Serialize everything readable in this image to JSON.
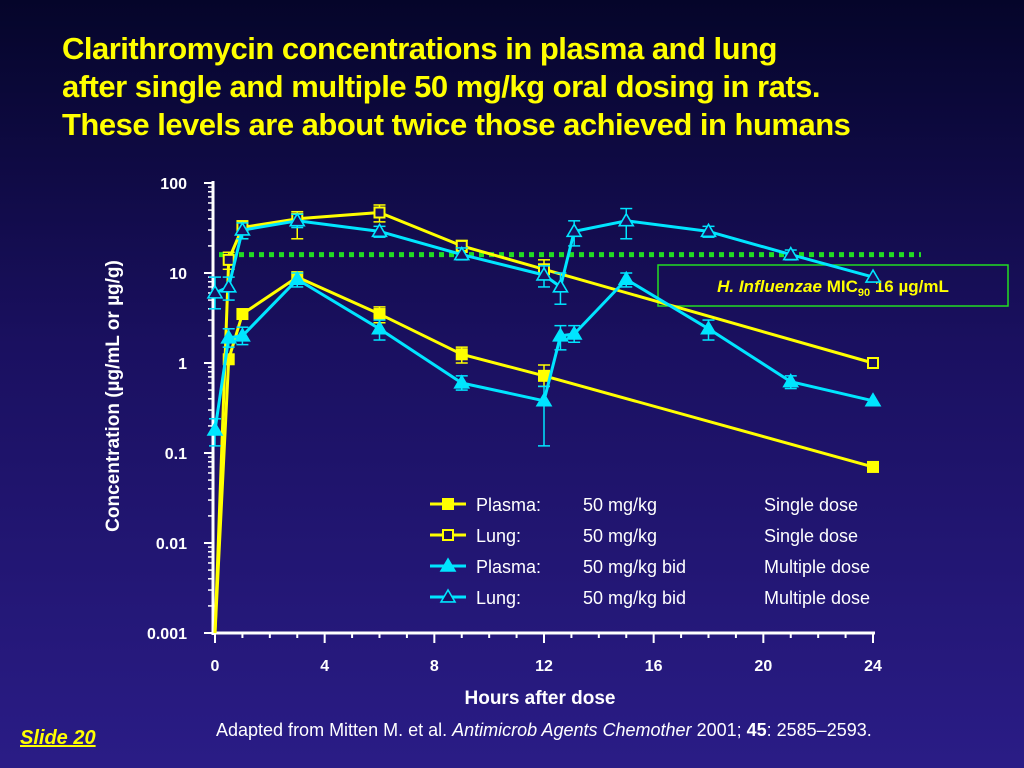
{
  "title": {
    "line1": "Clarithromycin concentrations in plasma and lung",
    "line2": "after single and multiple 50 mg/kg oral dosing in rats.",
    "line3": "These levels are about twice those achieved in humans"
  },
  "footer": {
    "prefix": "Adapted from Mitten M. et al. ",
    "journal": "Antimicrob Agents Chemother",
    "year": " 2001; ",
    "volume": "45",
    "pages": ": 2585–2593."
  },
  "slide_label": "Slide  20",
  "colors": {
    "background": "#1a1060",
    "title": "#ffff00",
    "single_dose": "#ffff00",
    "multiple_dose": "#00e5ff",
    "mic_line": "#22dd22",
    "text": "#ffffff"
  },
  "chart_data": {
    "type": "line",
    "xlabel": "Hours after dose",
    "ylabel": "Concentration (µg/mL or µg/g)",
    "y_scale": "log",
    "xlim": [
      0,
      24
    ],
    "ylim": [
      0.001,
      100
    ],
    "x_ticks": [
      "0",
      "4",
      "8",
      "12",
      "16",
      "20",
      "24"
    ],
    "y_ticks": [
      "0.001",
      "0.01",
      "0.1",
      "1",
      "10",
      "100"
    ],
    "legend_position": "bottom-right",
    "series": [
      {
        "name": "Plasma:",
        "dose": "50 mg/kg",
        "regimen": "Single dose",
        "color": "#ffff00",
        "marker": "square-filled",
        "points": [
          {
            "x": 0,
            "y": 0.001
          },
          {
            "x": 0.5,
            "y": 1.1
          },
          {
            "x": 1,
            "y": 3.5
          },
          {
            "x": 3,
            "y": 9
          },
          {
            "x": 6,
            "y": 3.5,
            "err": [
              2.8,
              4.2
            ]
          },
          {
            "x": 9,
            "y": 1.25,
            "err": [
              1.0,
              1.5
            ]
          },
          {
            "x": 12,
            "y": 0.72,
            "err": [
              0.55,
              0.95
            ]
          },
          {
            "x": 24,
            "y": 0.07
          }
        ]
      },
      {
        "name": "Lung:",
        "dose": "50 mg/kg",
        "regimen": "Single dose",
        "color": "#ffff00",
        "marker": "square-open",
        "points": [
          {
            "x": 0,
            "y": 0.001
          },
          {
            "x": 0.5,
            "y": 14,
            "err": [
              11,
              17
            ]
          },
          {
            "x": 1,
            "y": 32,
            "err": [
              24,
              38
            ]
          },
          {
            "x": 3,
            "y": 40,
            "err": [
              24,
              48
            ]
          },
          {
            "x": 6,
            "y": 47,
            "err": [
              37,
              57
            ]
          },
          {
            "x": 9,
            "y": 20,
            "err": [
              17,
              23
            ]
          },
          {
            "x": 12,
            "y": 11,
            "err": [
              9,
              14
            ]
          },
          {
            "x": 24,
            "y": 1.0
          }
        ]
      },
      {
        "name": "Plasma:",
        "dose": "50 mg/kg bid",
        "regimen": "Multiple dose",
        "color": "#00e5ff",
        "marker": "triangle-filled",
        "points": [
          {
            "x": 0,
            "y": 0.18,
            "err": [
              0.12,
              0.24
            ]
          },
          {
            "x": 0.5,
            "y": 1.9,
            "err": [
              1.5,
              2.4
            ]
          },
          {
            "x": 1,
            "y": 2.0,
            "err": [
              1.6,
              2.5
            ]
          },
          {
            "x": 3,
            "y": 8.5,
            "err": [
              7,
              10
            ]
          },
          {
            "x": 6,
            "y": 2.4,
            "err": [
              1.8,
              3.0
            ]
          },
          {
            "x": 9,
            "y": 0.6,
            "err": [
              0.5,
              0.72
            ]
          },
          {
            "x": 12,
            "y": 0.38,
            "err": [
              0.12,
              0.55
            ]
          },
          {
            "x": 12.6,
            "y": 2.0,
            "err": [
              1.4,
              2.6
            ]
          },
          {
            "x": 13.1,
            "y": 2.1,
            "err": [
              1.7,
              2.6
            ]
          },
          {
            "x": 15,
            "y": 8.5,
            "err": [
              7,
              10
            ]
          },
          {
            "x": 18,
            "y": 2.4,
            "err": [
              1.8,
              3.0
            ]
          },
          {
            "x": 21,
            "y": 0.62,
            "err": [
              0.52,
              0.72
            ]
          },
          {
            "x": 24,
            "y": 0.38
          }
        ]
      },
      {
        "name": "Lung:",
        "dose": "50 mg/kg bid",
        "regimen": "Multiple dose",
        "color": "#00e5ff",
        "marker": "triangle-open",
        "points": [
          {
            "x": 0,
            "y": 6,
            "err": [
              4,
              9
            ]
          },
          {
            "x": 0.5,
            "y": 7,
            "err": [
              5,
              9
            ]
          },
          {
            "x": 1,
            "y": 30,
            "err": [
              24,
              36
            ]
          },
          {
            "x": 3,
            "y": 38,
            "err": [
              32,
              45
            ]
          },
          {
            "x": 6,
            "y": 29,
            "err": [
              25,
              33
            ]
          },
          {
            "x": 9,
            "y": 16,
            "err": [
              14,
              19
            ]
          },
          {
            "x": 12,
            "y": 9.5,
            "err": [
              7,
              12
            ]
          },
          {
            "x": 12.6,
            "y": 7,
            "err": [
              4.5,
              10
            ]
          },
          {
            "x": 13.1,
            "y": 29,
            "err": [
              20,
              38
            ]
          },
          {
            "x": 15,
            "y": 38,
            "err": [
              24,
              52
            ]
          },
          {
            "x": 18,
            "y": 29,
            "err": [
              25,
              33
            ]
          },
          {
            "x": 21,
            "y": 16,
            "err": [
              14,
              18
            ]
          },
          {
            "x": 24,
            "y": 9
          }
        ]
      }
    ],
    "reference_line": {
      "y": 16,
      "color": "#22dd22",
      "label_organism": "H. Influenzae",
      "label_mic": "MIC",
      "label_sub": "90",
      "label_value": "16 µg/mL"
    }
  }
}
